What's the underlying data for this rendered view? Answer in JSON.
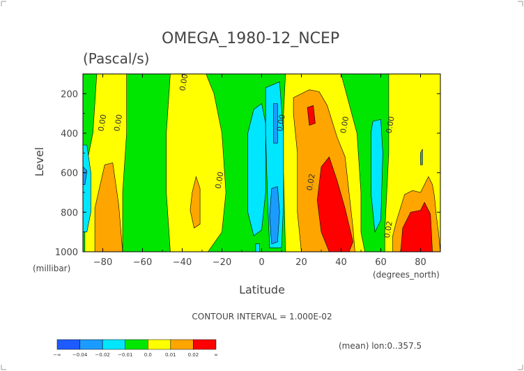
{
  "chart_data": {
    "type": "contour",
    "title": "OMEGA_1980-12_NCEP",
    "units": "(Pascal/s)",
    "xlabel": "Latitude",
    "ylabel": "Level",
    "y_units_label": "(millibar)",
    "x_units_label": "(degrees_north)",
    "xlim": [
      -90,
      90
    ],
    "ylim": [
      100,
      1000
    ],
    "x_ticks": [
      -80,
      -60,
      -40,
      -20,
      0,
      20,
      40,
      60,
      80
    ],
    "y_ticks": [
      200,
      400,
      600,
      800,
      1000
    ],
    "contour_interval_label": "CONTOUR INTERVAL = 1.000E-02",
    "footer": "(mean) lon:0..357.5",
    "contour_labels": [
      {
        "text": "0.00",
        "lat": -79,
        "lev": 350
      },
      {
        "text": "0.00",
        "lat": -71,
        "lev": 350
      },
      {
        "text": "0.00",
        "lat": -38,
        "lev": 145
      },
      {
        "text": "0.00",
        "lat": -20,
        "lev": 640
      },
      {
        "text": "0.00",
        "lat": 11,
        "lev": 350
      },
      {
        "text": "0.00",
        "lat": 43,
        "lev": 360
      },
      {
        "text": "0.00",
        "lat": 66,
        "lev": 360
      },
      {
        "text": "0.02",
        "lat": 26,
        "lev": 650
      },
      {
        "text": "0.02",
        "lat": 65,
        "lev": 890
      }
    ],
    "colorbar": {
      "colors": [
        "#1e5bff",
        "#1c9bff",
        "#00e6ff",
        "#00e600",
        "#ffff00",
        "#ffa500",
        "#ff0000"
      ],
      "labels": [
        "-∞",
        "-0.04",
        "-0.02",
        "-0.01",
        "0.0",
        "0.01",
        "0.02",
        "∞"
      ]
    },
    "regions": [
      {
        "level": "pos1",
        "color": "#ffff00",
        "poly": [
          [
            -83,
            100
          ],
          [
            -68,
            100
          ],
          [
            -68,
            400
          ],
          [
            -70,
            700
          ],
          [
            -70,
            1000
          ],
          [
            -89,
            1000
          ],
          [
            -89,
            600
          ],
          [
            -85,
            400
          ]
        ]
      },
      {
        "level": "pos2",
        "color": "#ffa500",
        "poly": [
          [
            -79,
            560
          ],
          [
            -75,
            550
          ],
          [
            -72,
            760
          ],
          [
            -70,
            1000
          ],
          [
            -84,
            1000
          ],
          [
            -84,
            780
          ]
        ]
      },
      {
        "level": "neg1",
        "color": "#00e6ff",
        "poly": [
          [
            -90,
            460
          ],
          [
            -88,
            460
          ],
          [
            -86,
            600
          ],
          [
            -86,
            800
          ],
          [
            -88,
            900
          ],
          [
            -90,
            900
          ]
        ]
      },
      {
        "level": "neg2",
        "color": "#1c9bff",
        "poly": [
          [
            -90,
            570
          ],
          [
            -88,
            590
          ],
          [
            -89,
            660
          ],
          [
            -90,
            660
          ]
        ]
      },
      {
        "level": "pos1",
        "color": "#ffff00",
        "poly": [
          [
            -46,
            100
          ],
          [
            -28,
            100
          ],
          [
            -24,
            200
          ],
          [
            -20,
            400
          ],
          [
            -18,
            700
          ],
          [
            -20,
            900
          ],
          [
            -27,
            1000
          ],
          [
            -46,
            1000
          ],
          [
            -48,
            700
          ],
          [
            -48,
            400
          ]
        ]
      },
      {
        "level": "pos2",
        "color": "#ffa500",
        "poly": [
          [
            -33,
            620
          ],
          [
            -31,
            680
          ],
          [
            -31,
            860
          ],
          [
            -34,
            880
          ],
          [
            -36,
            790
          ],
          [
            -35,
            700
          ]
        ]
      },
      {
        "level": "neg1",
        "color": "#00e6ff",
        "poly": [
          [
            -4,
            280
          ],
          [
            0,
            250
          ],
          [
            2,
            350
          ],
          [
            2,
            700
          ],
          [
            0,
            890
          ],
          [
            -4,
            920
          ],
          [
            -7,
            800
          ],
          [
            -7,
            400
          ]
        ]
      },
      {
        "level": "neg1",
        "color": "#00e6ff",
        "poly": [
          [
            2,
            170
          ],
          [
            9,
            140
          ],
          [
            11,
            400
          ],
          [
            11,
            760
          ],
          [
            10,
            980
          ],
          [
            4,
            980
          ],
          [
            3,
            750
          ],
          [
            2,
            400
          ]
        ]
      },
      {
        "level": "neg2",
        "color": "#1c9bff",
        "poly": [
          [
            6,
            250
          ],
          [
            8,
            250
          ],
          [
            8,
            450
          ],
          [
            6,
            450
          ]
        ]
      },
      {
        "level": "neg2",
        "color": "#1c9bff",
        "poly": [
          [
            5,
            680
          ],
          [
            8,
            670
          ],
          [
            9,
            800
          ],
          [
            8,
            950
          ],
          [
            5,
            960
          ],
          [
            4,
            820
          ]
        ]
      },
      {
        "level": "neg1",
        "color": "#00e6ff",
        "poly": [
          [
            -3,
            960
          ],
          [
            -1,
            960
          ],
          [
            -1,
            1000
          ],
          [
            -3,
            1000
          ]
        ]
      },
      {
        "level": "pos1",
        "color": "#ffff00",
        "poly": [
          [
            12,
            100
          ],
          [
            40,
            100
          ],
          [
            44,
            250
          ],
          [
            48,
            400
          ],
          [
            50,
            700
          ],
          [
            50,
            900
          ],
          [
            52,
            1000
          ],
          [
            12,
            1000
          ],
          [
            11,
            600
          ],
          [
            11,
            300
          ]
        ]
      },
      {
        "level": "pos2",
        "color": "#ffa500",
        "poly": [
          [
            16,
            220
          ],
          [
            24,
            180
          ],
          [
            29,
            190
          ],
          [
            33,
            260
          ],
          [
            38,
            420
          ],
          [
            42,
            520
          ],
          [
            44,
            700
          ],
          [
            46,
            880
          ],
          [
            47,
            1000
          ],
          [
            20,
            1000
          ],
          [
            18,
            800
          ],
          [
            18,
            500
          ],
          [
            16,
            300
          ]
        ]
      },
      {
        "level": "pos3",
        "color": "#ff0000",
        "poly": [
          [
            23,
            270
          ],
          [
            26,
            260
          ],
          [
            27,
            350
          ],
          [
            24,
            360
          ]
        ]
      },
      {
        "level": "pos3",
        "color": "#ff0000",
        "poly": [
          [
            30,
            570
          ],
          [
            34,
            520
          ],
          [
            38,
            640
          ],
          [
            42,
            780
          ],
          [
            46,
            950
          ],
          [
            44,
            1000
          ],
          [
            34,
            1000
          ],
          [
            30,
            900
          ],
          [
            28,
            740
          ]
        ]
      },
      {
        "level": "pos1",
        "color": "#ffff00",
        "poly": [
          [
            64,
            100
          ],
          [
            90,
            100
          ],
          [
            90,
            1000
          ],
          [
            62,
            1000
          ],
          [
            62,
            900
          ],
          [
            64,
            500
          ]
        ]
      },
      {
        "level": "neg1",
        "color": "#00e6ff",
        "poly": [
          [
            56,
            340
          ],
          [
            60,
            330
          ],
          [
            61,
            500
          ],
          [
            60,
            840
          ],
          [
            57,
            900
          ],
          [
            55,
            700
          ],
          [
            55,
            400
          ]
        ]
      },
      {
        "level": "pos2",
        "color": "#ffa500",
        "poly": [
          [
            68,
            840
          ],
          [
            72,
            710
          ],
          [
            76,
            690
          ],
          [
            80,
            700
          ],
          [
            84,
            620
          ],
          [
            86,
            660
          ],
          [
            87,
            720
          ],
          [
            88,
            820
          ],
          [
            89,
            900
          ],
          [
            90,
            1000
          ],
          [
            66,
            1000
          ],
          [
            66,
            920
          ]
        ]
      },
      {
        "level": "pos3",
        "color": "#ff0000",
        "poly": [
          [
            71,
            880
          ],
          [
            75,
            800
          ],
          [
            80,
            790
          ],
          [
            82,
            750
          ],
          [
            85,
            810
          ],
          [
            86,
            1000
          ],
          [
            70,
            1000
          ]
        ]
      },
      {
        "level": "neg2",
        "color": "#1c9bff",
        "poly": [
          [
            80,
            500
          ],
          [
            81,
            480
          ],
          [
            81,
            560
          ],
          [
            80,
            560
          ]
        ]
      }
    ]
  }
}
